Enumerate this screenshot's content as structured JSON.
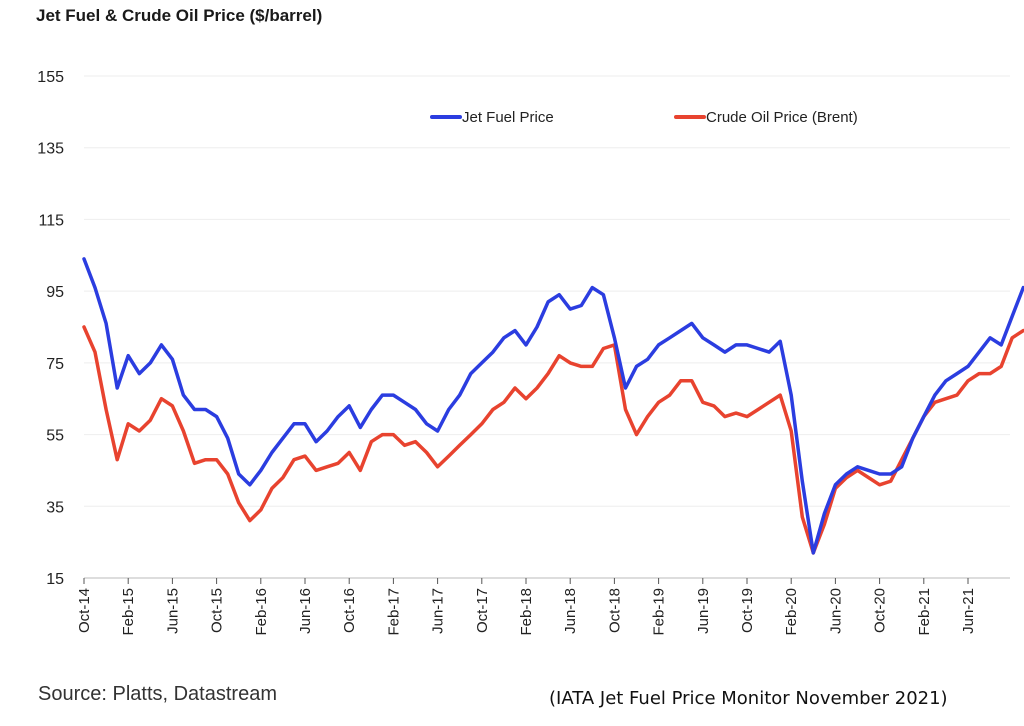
{
  "chart_data": {
    "type": "line",
    "title": "Jet Fuel & Crude Oil Price ($/barrel)",
    "ylim": [
      15,
      155
    ],
    "yticks": [
      15,
      35,
      55,
      75,
      95,
      115,
      135,
      155
    ],
    "xticks": [
      "Oct-14",
      "Feb-15",
      "Jun-15",
      "Oct-15",
      "Feb-16",
      "Jun-16",
      "Oct-16",
      "Feb-17",
      "Jun-17",
      "Oct-17",
      "Feb-18",
      "Jun-18",
      "Oct-18",
      "Feb-19",
      "Jun-19",
      "Oct-19",
      "Feb-20",
      "Jun-20",
      "Oct-20",
      "Feb-21",
      "Jun-21"
    ],
    "legend_position": "top-right",
    "grid": true,
    "series": [
      {
        "name": "Jet Fuel Price",
        "color": "#2b3de0",
        "x": [
          "2014-10",
          "2014-11",
          "2014-12",
          "2015-01",
          "2015-02",
          "2015-03",
          "2015-04",
          "2015-05",
          "2015-06",
          "2015-07",
          "2015-08",
          "2015-09",
          "2015-10",
          "2015-11",
          "2015-12",
          "2016-01",
          "2016-02",
          "2016-03",
          "2016-04",
          "2016-05",
          "2016-06",
          "2016-07",
          "2016-08",
          "2016-09",
          "2016-10",
          "2016-11",
          "2016-12",
          "2017-01",
          "2017-02",
          "2017-03",
          "2017-04",
          "2017-05",
          "2017-06",
          "2017-07",
          "2017-08",
          "2017-09",
          "2017-10",
          "2017-11",
          "2017-12",
          "2018-01",
          "2018-02",
          "2018-03",
          "2018-04",
          "2018-05",
          "2018-06",
          "2018-07",
          "2018-08",
          "2018-09",
          "2018-10",
          "2018-11",
          "2018-12",
          "2019-01",
          "2019-02",
          "2019-03",
          "2019-04",
          "2019-05",
          "2019-06",
          "2019-07",
          "2019-08",
          "2019-09",
          "2019-10",
          "2019-11",
          "2019-12",
          "2020-01",
          "2020-02",
          "2020-03",
          "2020-04",
          "2020-05",
          "2020-06",
          "2020-07",
          "2020-08",
          "2020-09",
          "2020-10",
          "2020-11",
          "2020-12",
          "2021-01",
          "2021-02",
          "2021-03",
          "2021-04",
          "2021-05",
          "2021-06",
          "2021-07",
          "2021-08",
          "2021-09",
          "2021-10",
          "2021-11"
        ],
        "values": [
          104,
          96,
          86,
          68,
          77,
          72,
          75,
          80,
          76,
          66,
          62,
          62,
          60,
          54,
          44,
          41,
          45,
          50,
          54,
          58,
          58,
          53,
          56,
          60,
          63,
          57,
          62,
          66,
          66,
          64,
          62,
          58,
          56,
          62,
          66,
          72,
          75,
          78,
          82,
          84,
          80,
          85,
          92,
          94,
          90,
          91,
          96,
          94,
          82,
          68,
          74,
          76,
          80,
          82,
          84,
          86,
          82,
          80,
          78,
          80,
          80,
          79,
          78,
          81,
          66,
          42,
          22,
          33,
          41,
          44,
          46,
          45,
          44,
          44,
          46,
          54,
          60,
          66,
          70,
          72,
          74,
          78,
          82,
          80,
          88,
          96
        ]
      },
      {
        "name": "Crude Oil Price (Brent)",
        "color": "#e8432f",
        "x": [
          "2014-10",
          "2014-11",
          "2014-12",
          "2015-01",
          "2015-02",
          "2015-03",
          "2015-04",
          "2015-05",
          "2015-06",
          "2015-07",
          "2015-08",
          "2015-09",
          "2015-10",
          "2015-11",
          "2015-12",
          "2016-01",
          "2016-02",
          "2016-03",
          "2016-04",
          "2016-05",
          "2016-06",
          "2016-07",
          "2016-08",
          "2016-09",
          "2016-10",
          "2016-11",
          "2016-12",
          "2017-01",
          "2017-02",
          "2017-03",
          "2017-04",
          "2017-05",
          "2017-06",
          "2017-07",
          "2017-08",
          "2017-09",
          "2017-10",
          "2017-11",
          "2017-12",
          "2018-01",
          "2018-02",
          "2018-03",
          "2018-04",
          "2018-05",
          "2018-06",
          "2018-07",
          "2018-08",
          "2018-09",
          "2018-10",
          "2018-11",
          "2018-12",
          "2019-01",
          "2019-02",
          "2019-03",
          "2019-04",
          "2019-05",
          "2019-06",
          "2019-07",
          "2019-08",
          "2019-09",
          "2019-10",
          "2019-11",
          "2019-12",
          "2020-01",
          "2020-02",
          "2020-03",
          "2020-04",
          "2020-05",
          "2020-06",
          "2020-07",
          "2020-08",
          "2020-09",
          "2020-10",
          "2020-11",
          "2020-12",
          "2021-01",
          "2021-02",
          "2021-03",
          "2021-04",
          "2021-05",
          "2021-06",
          "2021-07",
          "2021-08",
          "2021-09",
          "2021-10",
          "2021-11"
        ],
        "values": [
          85,
          78,
          62,
          48,
          58,
          56,
          59,
          65,
          63,
          56,
          47,
          48,
          48,
          44,
          36,
          31,
          34,
          40,
          43,
          48,
          49,
          45,
          46,
          47,
          50,
          45,
          53,
          55,
          55,
          52,
          53,
          50,
          46,
          49,
          52,
          55,
          58,
          62,
          64,
          68,
          65,
          68,
          72,
          77,
          75,
          74,
          74,
          79,
          80,
          62,
          55,
          60,
          64,
          66,
          70,
          70,
          64,
          63,
          60,
          61,
          60,
          62,
          64,
          66,
          56,
          32,
          22,
          30,
          40,
          43,
          45,
          43,
          41,
          42,
          48,
          54,
          60,
          64,
          65,
          66,
          70,
          72,
          72,
          74,
          82,
          84
        ]
      }
    ]
  },
  "source": "Source: Platts, Datastream",
  "note": "(IATA Jet Fuel Price Monitor November 2021)"
}
